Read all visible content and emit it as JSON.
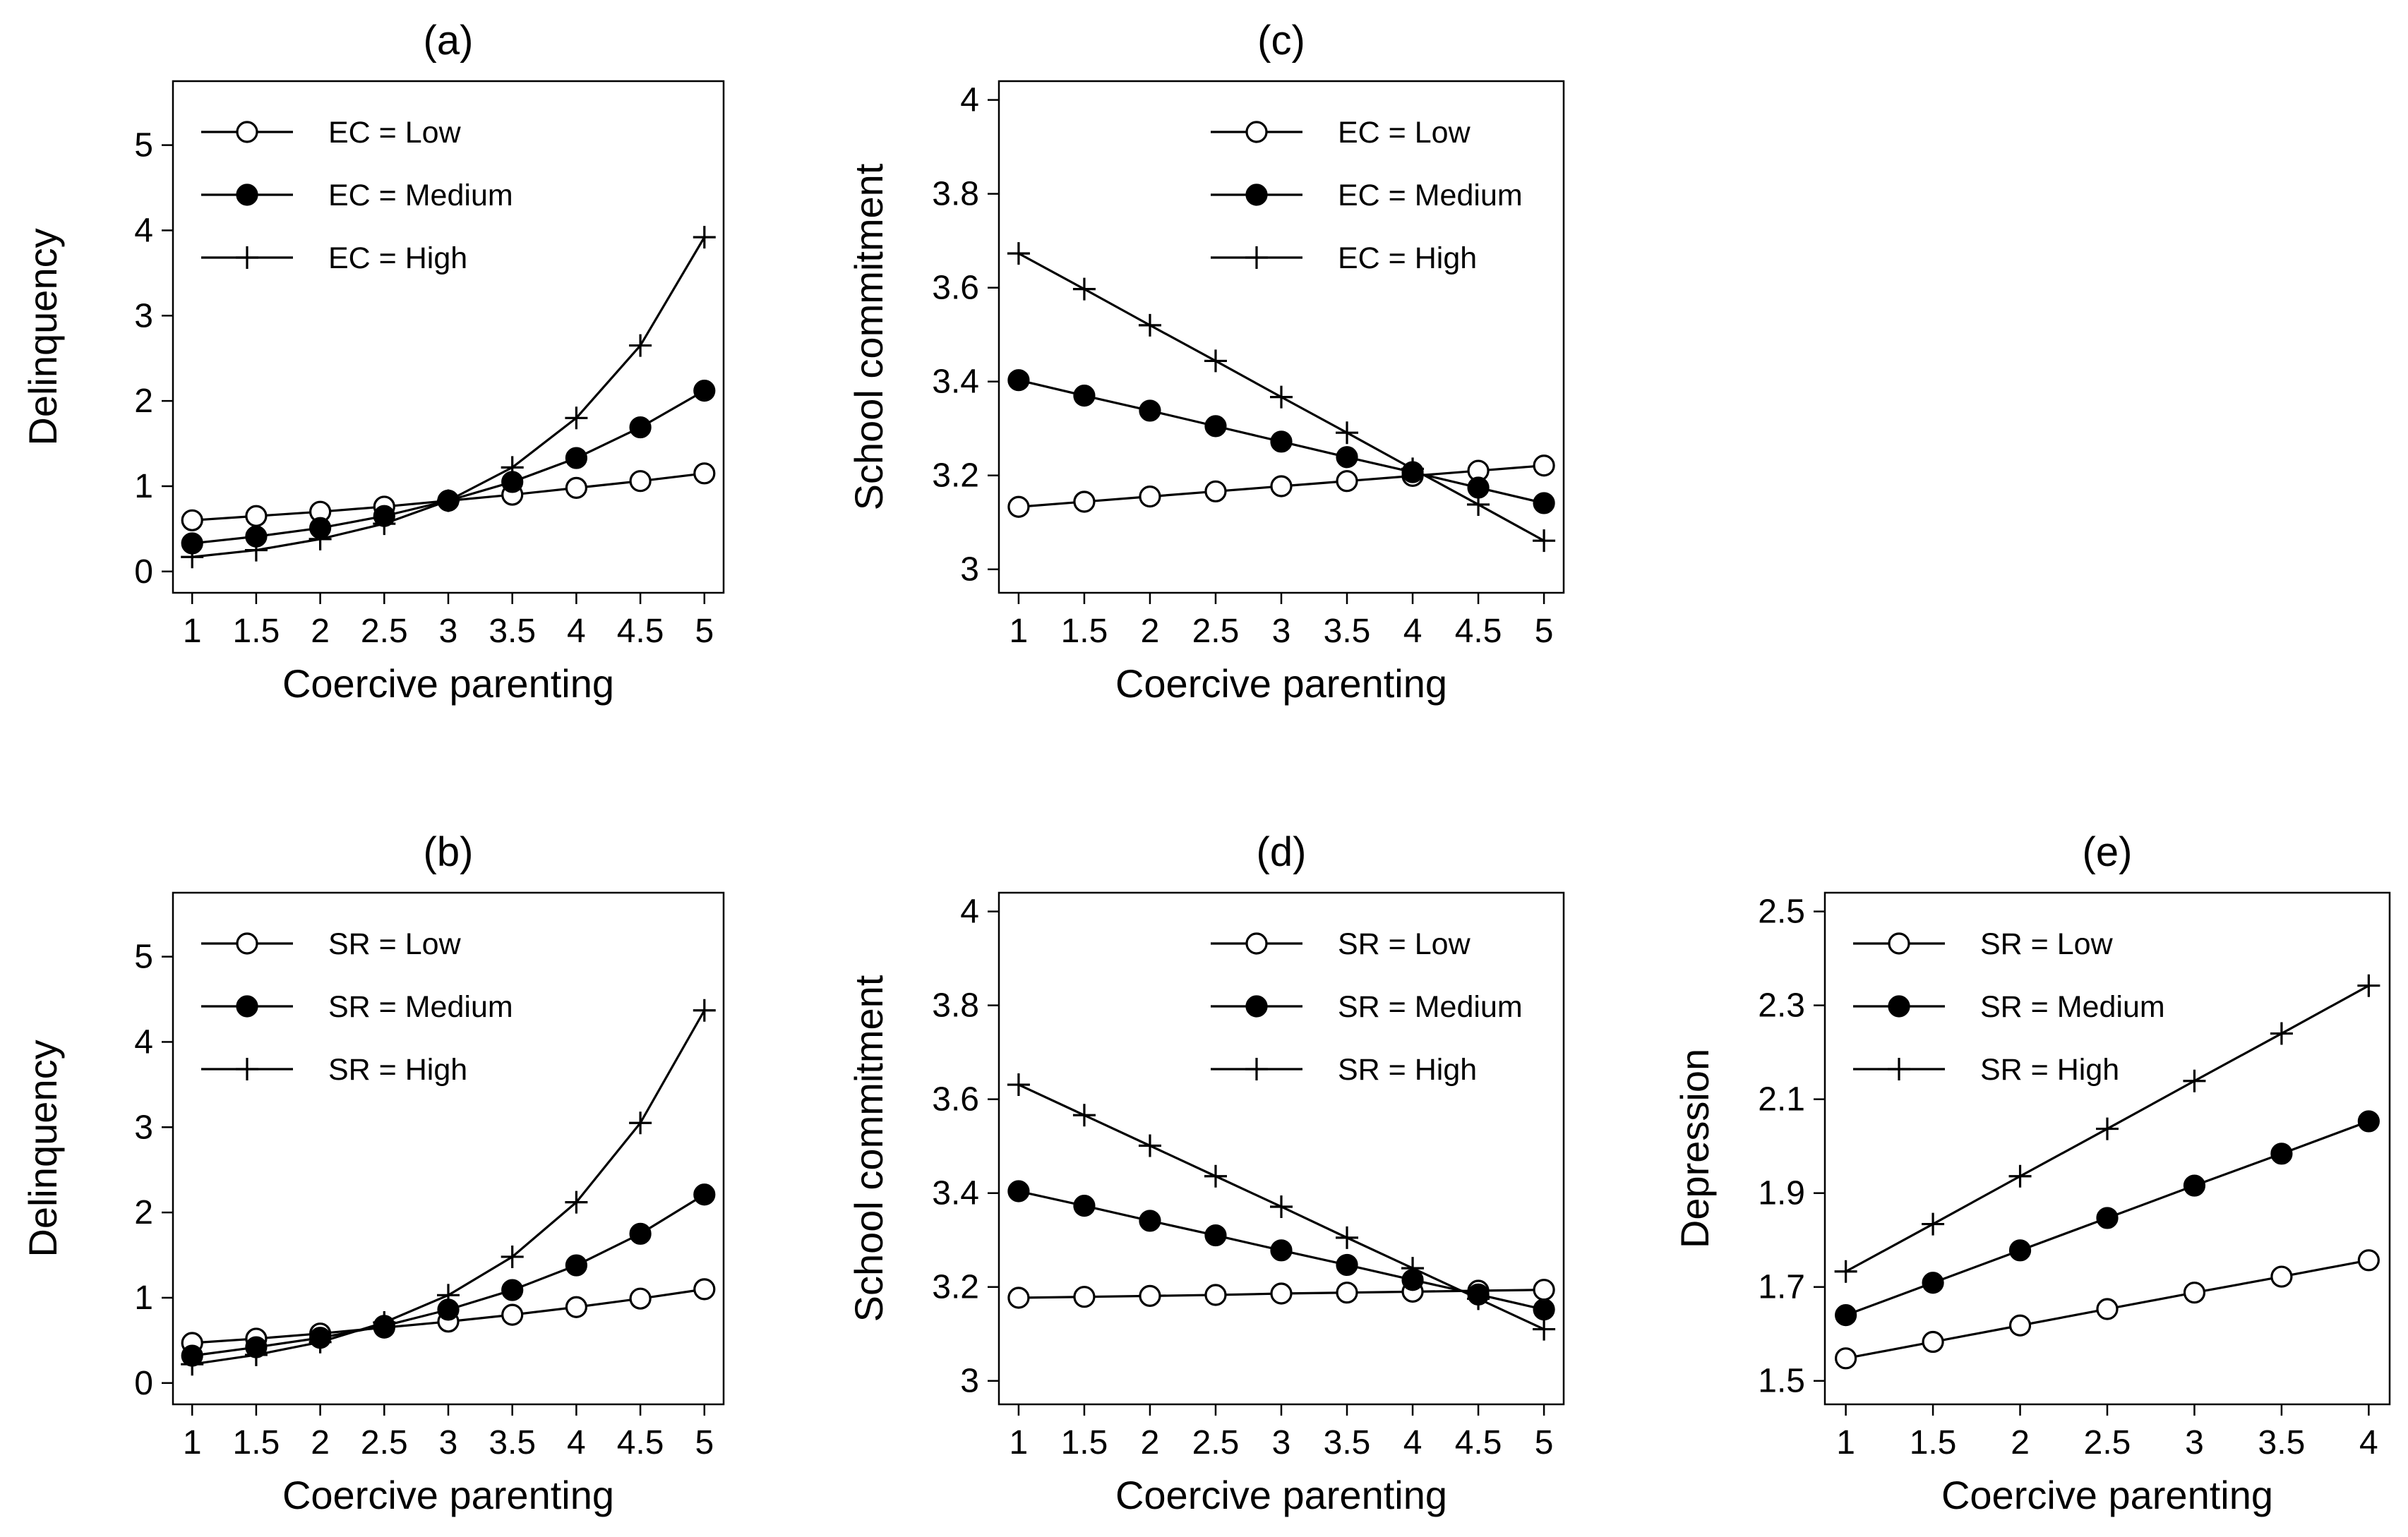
{
  "figure": {
    "charts": [
      {
        "panel": "(a)",
        "type": "line",
        "xlabel": "Coercive parenting",
        "ylabel": "Delinquency",
        "x": [
          1,
          1.5,
          2,
          2.5,
          3,
          3.5,
          4,
          4.5,
          5
        ],
        "xticks": [
          1,
          1.5,
          2,
          2.5,
          3,
          3.5,
          4,
          4.5,
          5
        ],
        "xlim": [
          0.85,
          5.15
        ],
        "yticks": [
          0,
          1,
          2,
          3,
          4,
          5
        ],
        "ylim": [
          -0.25,
          5.75
        ],
        "legend_position": "top-left",
        "series": [
          {
            "name": "EC = Low",
            "marker": "open-circle",
            "values": [
              0.6,
              0.65,
              0.7,
              0.76,
              0.83,
              0.9,
              0.98,
              1.06,
              1.15
            ]
          },
          {
            "name": "EC = Medium",
            "marker": "filled-circle",
            "values": [
              0.33,
              0.41,
              0.51,
              0.65,
              0.83,
              1.05,
              1.33,
              1.69,
              2.12
            ]
          },
          {
            "name": "EC = High",
            "marker": "plus",
            "values": [
              0.17,
              0.25,
              0.38,
              0.56,
              0.83,
              1.22,
              1.8,
              2.65,
              3.92
            ]
          }
        ]
      },
      {
        "panel": "(c)",
        "type": "line",
        "xlabel": "Coercive parenting",
        "ylabel": "School commitment",
        "x": [
          1,
          1.5,
          2,
          2.5,
          3,
          3.5,
          4,
          4.5,
          5
        ],
        "xticks": [
          1,
          1.5,
          2,
          2.5,
          3,
          3.5,
          4,
          4.5,
          5
        ],
        "xlim": [
          0.85,
          5.15
        ],
        "yticks": [
          3,
          3.2,
          3.4,
          3.6,
          3.8,
          4
        ],
        "yticklabels": [
          "3",
          "3.2",
          "3.4",
          "3.6",
          "3.8",
          "4"
        ],
        "ylim": [
          2.95,
          4.04
        ],
        "legend_position": "top-right",
        "series": [
          {
            "name": "EC = Low",
            "marker": "open-circle",
            "values": [
              3.133,
              3.144,
              3.155,
              3.166,
              3.177,
              3.188,
              3.199,
              3.21,
              3.221
            ]
          },
          {
            "name": "EC = Medium",
            "marker": "filled-circle",
            "values": [
              3.403,
              3.37,
              3.338,
              3.305,
              3.272,
              3.239,
              3.207,
              3.174,
              3.141
            ]
          },
          {
            "name": "EC = High",
            "marker": "plus",
            "values": [
              3.673,
              3.597,
              3.52,
              3.444,
              3.367,
              3.291,
              3.214,
              3.138,
              3.061
            ]
          }
        ]
      },
      {
        "panel": "(b)",
        "type": "line",
        "xlabel": "Coercive parenting",
        "ylabel": "Delinquency",
        "x": [
          1,
          1.5,
          2,
          2.5,
          3,
          3.5,
          4,
          4.5,
          5
        ],
        "xticks": [
          1,
          1.5,
          2,
          2.5,
          3,
          3.5,
          4,
          4.5,
          5
        ],
        "xlim": [
          0.85,
          5.15
        ],
        "yticks": [
          0,
          1,
          2,
          3,
          4,
          5
        ],
        "ylim": [
          -0.25,
          5.75
        ],
        "legend_position": "top-left",
        "series": [
          {
            "name": "SR = Low",
            "marker": "open-circle",
            "values": [
              0.47,
              0.52,
              0.58,
              0.65,
              0.72,
              0.8,
              0.89,
              0.99,
              1.1
            ]
          },
          {
            "name": "SR = Medium",
            "marker": "filled-circle",
            "values": [
              0.32,
              0.42,
              0.53,
              0.67,
              0.86,
              1.09,
              1.38,
              1.75,
              2.21
            ]
          },
          {
            "name": "SR = High",
            "marker": "plus",
            "values": [
              0.22,
              0.33,
              0.48,
              0.71,
              1.03,
              1.48,
              2.12,
              3.05,
              4.37
            ]
          }
        ]
      },
      {
        "panel": "(d)",
        "type": "line",
        "xlabel": "Coercive parenting",
        "ylabel": "School commitment",
        "x": [
          1,
          1.5,
          2,
          2.5,
          3,
          3.5,
          4,
          4.5,
          5
        ],
        "xticks": [
          1,
          1.5,
          2,
          2.5,
          3,
          3.5,
          4,
          4.5,
          5
        ],
        "xlim": [
          0.85,
          5.15
        ],
        "yticks": [
          3,
          3.2,
          3.4,
          3.6,
          3.8,
          4
        ],
        "yticklabels": [
          "3",
          "3.2",
          "3.4",
          "3.6",
          "3.8",
          "4"
        ],
        "ylim": [
          2.95,
          4.04
        ],
        "legend_position": "top-right",
        "series": [
          {
            "name": "SR = Low",
            "marker": "open-circle",
            "values": [
              3.177,
              3.179,
              3.181,
              3.183,
              3.186,
              3.188,
              3.19,
              3.192,
              3.194
            ]
          },
          {
            "name": "SR = Medium",
            "marker": "filled-circle",
            "values": [
              3.404,
              3.373,
              3.341,
              3.31,
              3.278,
              3.247,
              3.215,
              3.184,
              3.152
            ]
          },
          {
            "name": "SR = High",
            "marker": "plus",
            "values": [
              3.631,
              3.566,
              3.501,
              3.436,
              3.371,
              3.305,
              3.24,
              3.175,
              3.11
            ]
          }
        ]
      },
      {
        "panel": "(e)",
        "type": "line",
        "xlabel": "Coercive parenting",
        "ylabel": "Depression",
        "x": [
          1,
          1.5,
          2,
          2.5,
          3,
          3.5,
          4
        ],
        "xticks": [
          1,
          1.5,
          2,
          2.5,
          3,
          3.5,
          4
        ],
        "xlim": [
          0.88,
          4.12
        ],
        "yticks": [
          1.5,
          1.7,
          1.9,
          2.1,
          2.3,
          2.5
        ],
        "yticklabels": [
          "1.5",
          "1.7",
          "1.9",
          "2.1",
          "2.3",
          "2.5"
        ],
        "ylim": [
          1.45,
          2.54
        ],
        "legend_position": "top-left",
        "series": [
          {
            "name": "SR = Low",
            "marker": "open-circle",
            "values": [
              1.548,
              1.583,
              1.618,
              1.653,
              1.688,
              1.722,
              1.757
            ]
          },
          {
            "name": "SR = Medium",
            "marker": "filled-circle",
            "values": [
              1.64,
              1.709,
              1.778,
              1.847,
              1.916,
              1.984,
              2.053
            ]
          },
          {
            "name": "SR = High",
            "marker": "plus",
            "values": [
              1.733,
              1.834,
              1.936,
              2.037,
              2.139,
              2.24,
              2.342
            ]
          }
        ]
      }
    ]
  }
}
